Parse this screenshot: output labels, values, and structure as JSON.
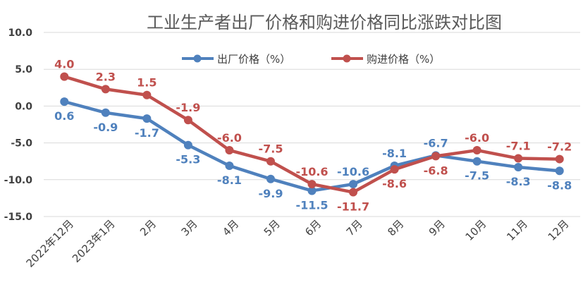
{
  "chart_data": {
    "type": "line",
    "title": "工业生产者出厂价格和购进价格同比涨跌对比图",
    "categories": [
      "2022年12月",
      "2023年1月",
      "2月",
      "3月",
      "4月",
      "5月",
      "6月",
      "7月",
      "8月",
      "9月",
      "10月",
      "11月",
      "12月"
    ],
    "series": [
      {
        "name": "出厂价格（%）",
        "color": "#4f81bd",
        "values": [
          0.6,
          -0.9,
          -1.7,
          -5.3,
          -8.1,
          -9.9,
          -11.5,
          -10.6,
          -8.1,
          -6.7,
          -7.5,
          -8.3,
          -8.8
        ]
      },
      {
        "name": "购进价格（%）",
        "color": "#c0504d",
        "values": [
          4.0,
          2.3,
          1.5,
          -1.9,
          -6.0,
          -7.5,
          -10.6,
          -11.7,
          -8.6,
          -6.8,
          -6.0,
          -7.1,
          -7.2
        ]
      }
    ],
    "y_ticks": [
      "10.0",
      "5.0",
      "0.0",
      "-5.0",
      "-10.0",
      "-15.0"
    ],
    "ylim": [
      -15,
      10
    ],
    "grid": true,
    "legend": "top-center",
    "data_labels": {
      "s0": [
        "0.6",
        "-0.9",
        "-1.7",
        "-5.3",
        "-8.1",
        "-9.9",
        "-11.5",
        "-10.6",
        "-8.1",
        "-6.7",
        "-7.5",
        "-8.3",
        "-8.8"
      ],
      "s1": [
        "4.0",
        "2.3",
        "1.5",
        "-1.9",
        "-6.0",
        "-7.5",
        "-10.6",
        "-11.7",
        "-8.6",
        "-6.8",
        "-6.0",
        "-7.1",
        "-7.2"
      ]
    }
  }
}
